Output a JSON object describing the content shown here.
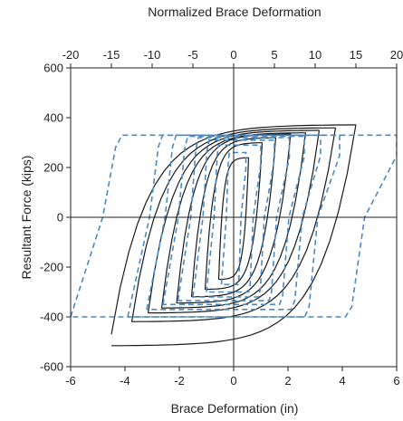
{
  "chart_data": {
    "type": "line",
    "title": "",
    "xlabel": "Brace Deformation (in)",
    "ylabel": "Resultant Force (kips)",
    "x2label": "Normalized Brace Deformation",
    "xlim": [
      -6,
      6
    ],
    "ylim": [
      -600,
      600
    ],
    "x2lim": [
      -20,
      20
    ],
    "xticks": [
      "-6",
      "-4",
      "-2",
      "0",
      "2",
      "4",
      "6"
    ],
    "yticks": [
      "600",
      "400",
      "200",
      "0",
      "-200",
      "-400",
      "-600"
    ],
    "x2ticks": [
      "-20",
      "-15",
      "-10",
      "-5",
      "0",
      "5",
      "10",
      "15",
      "20"
    ],
    "grid": false,
    "zero_lines": true,
    "series": [
      {
        "style": "solid",
        "color": "#1a1a1a",
        "loops": [
          {
            "amp": 0.55,
            "upper": 240,
            "lower": -250
          },
          {
            "amp": 1.05,
            "upper": 300,
            "lower": -290
          },
          {
            "amp": 1.55,
            "upper": 320,
            "lower": -320
          },
          {
            "amp": 2.1,
            "upper": 335,
            "lower": -345
          },
          {
            "amp": 2.65,
            "upper": 340,
            "lower": -365
          },
          {
            "amp": 3.15,
            "upper": 350,
            "lower": -385
          },
          {
            "amp": 3.75,
            "upper": 360,
            "lower": -420
          },
          {
            "amp": 4.5,
            "upper": 372,
            "lower": -470,
            "min_y": -530
          }
        ]
      },
      {
        "style": "dashed",
        "color": "#4a8ac4",
        "loops": [
          {
            "amp": 0.45,
            "upper": 260,
            "lower": -270
          },
          {
            "amp": 1.0,
            "upper": 290,
            "lower": -300
          },
          {
            "amp": 1.5,
            "upper": 310,
            "lower": -320
          },
          {
            "amp": 2.05,
            "upper": 320,
            "lower": -335
          },
          {
            "amp": 2.6,
            "upper": 325,
            "lower": -350
          },
          {
            "amp": 3.2,
            "upper": 330,
            "lower": -370
          },
          {
            "amp": 3.9,
            "upper": 330,
            "lower": -400
          },
          {
            "amp": 6.0,
            "upper": 330,
            "lower": -400
          }
        ]
      }
    ]
  }
}
